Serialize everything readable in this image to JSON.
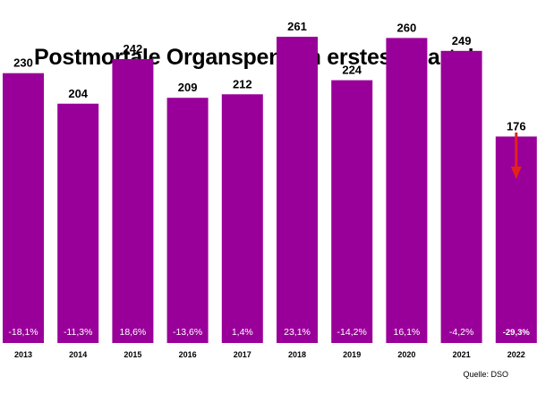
{
  "chart_data": {
    "type": "bar",
    "title": "Postmortale Organspenden erstes Quartal",
    "xlabel": "",
    "ylabel": "",
    "categories": [
      "2013",
      "2014",
      "2015",
      "2016",
      "2017",
      "2018",
      "2019",
      "2020",
      "2021",
      "2022"
    ],
    "values": [
      230,
      204,
      242,
      209,
      212,
      261,
      224,
      260,
      249,
      176
    ],
    "value_labels": [
      "230",
      "204",
      "242",
      "209",
      "212",
      "261",
      "224",
      "260",
      "249",
      "176"
    ],
    "change_labels": [
      "-18,1%",
      "-11,3%",
      "18,6%",
      "-13,6%",
      "1,4%",
      "23,1%",
      "-14,2%",
      "16,1%",
      "-4,2%",
      "-29,3%"
    ],
    "highlight_index": 9,
    "annotation": "red-down-arrow",
    "source": "Quelle: DSO",
    "bar_color": "#990099",
    "arrow_color": "#e2231a",
    "grid": false,
    "legend": "none"
  }
}
